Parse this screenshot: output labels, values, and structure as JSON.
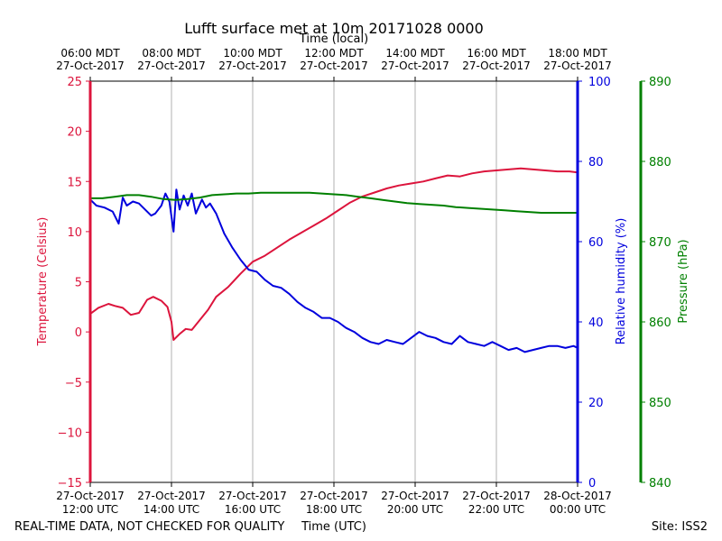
{
  "chart_data": {
    "type": "line",
    "title": "Lufft surface met at 10m 20171028 0000",
    "top_axis_label": "Time (local)",
    "xlabel": "Time (UTC)",
    "footer_left": "REAL-TIME DATA, NOT CHECKED FOR QUALITY",
    "footer_right": "Site: ISS2",
    "x_range_hours_utc": [
      12,
      24
    ],
    "x_ticks_utc": [
      {
        "hour": 12,
        "line1": "27-Oct-2017",
        "line2": "12:00 UTC"
      },
      {
        "hour": 14,
        "line1": "27-Oct-2017",
        "line2": "14:00 UTC"
      },
      {
        "hour": 16,
        "line1": "27-Oct-2017",
        "line2": "16:00 UTC"
      },
      {
        "hour": 18,
        "line1": "27-Oct-2017",
        "line2": "18:00 UTC"
      },
      {
        "hour": 20,
        "line1": "27-Oct-2017",
        "line2": "20:00 UTC"
      },
      {
        "hour": 22,
        "line1": "27-Oct-2017",
        "line2": "22:00 UTC"
      },
      {
        "hour": 24,
        "line1": "28-Oct-2017",
        "line2": "00:00 UTC"
      }
    ],
    "x_ticks_local": [
      {
        "hour": 12,
        "line1": "06:00 MDT",
        "line2": "27-Oct-2017"
      },
      {
        "hour": 14,
        "line1": "08:00 MDT",
        "line2": "27-Oct-2017"
      },
      {
        "hour": 16,
        "line1": "10:00 MDT",
        "line2": "27-Oct-2017"
      },
      {
        "hour": 18,
        "line1": "12:00 MDT",
        "line2": "27-Oct-2017"
      },
      {
        "hour": 20,
        "line1": "14:00 MDT",
        "line2": "27-Oct-2017"
      },
      {
        "hour": 22,
        "line1": "16:00 MDT",
        "line2": "27-Oct-2017"
      },
      {
        "hour": 24,
        "line1": "18:00 MDT",
        "line2": "27-Oct-2017"
      }
    ],
    "grid": "vertical",
    "axes": {
      "temperature": {
        "label": "Temperature (Celsius)",
        "ylim": [
          -15,
          25
        ],
        "ticks": [
          {
            "v": -15,
            "t": "−15"
          },
          {
            "v": -10,
            "t": "−10"
          },
          {
            "v": -5,
            "t": "−5"
          },
          {
            "v": 0,
            "t": "0"
          },
          {
            "v": 5,
            "t": "5"
          },
          {
            "v": 10,
            "t": "10"
          },
          {
            "v": 15,
            "t": "15"
          },
          {
            "v": 20,
            "t": "20"
          },
          {
            "v": 25,
            "t": "25"
          }
        ]
      },
      "humidity": {
        "label": "Relative humidity (%)",
        "ylim": [
          0,
          100
        ],
        "ticks": [
          {
            "v": 0,
            "t": "0"
          },
          {
            "v": 20,
            "t": "20"
          },
          {
            "v": 40,
            "t": "40"
          },
          {
            "v": 60,
            "t": "60"
          },
          {
            "v": 80,
            "t": "80"
          },
          {
            "v": 100,
            "t": "100"
          }
        ]
      },
      "pressure": {
        "label": "Pressure (hPa)",
        "ylim": [
          840,
          890
        ],
        "ticks": [
          {
            "v": 840,
            "t": "840"
          },
          {
            "v": 850,
            "t": "850"
          },
          {
            "v": 860,
            "t": "860"
          },
          {
            "v": 870,
            "t": "870"
          },
          {
            "v": 880,
            "t": "880"
          },
          {
            "v": 890,
            "t": "890"
          }
        ]
      }
    },
    "series": [
      {
        "name": "Temperature",
        "axis": "temperature",
        "color": "#dc143c",
        "x": [
          12.0,
          12.2,
          12.45,
          12.6,
          12.8,
          13.0,
          13.2,
          13.4,
          13.55,
          13.75,
          13.9,
          14.0,
          14.05,
          14.2,
          14.35,
          14.5,
          14.7,
          14.9,
          15.1,
          15.4,
          15.7,
          16.0,
          16.3,
          16.6,
          16.9,
          17.2,
          17.5,
          17.8,
          18.1,
          18.4,
          18.7,
          19.0,
          19.3,
          19.6,
          19.9,
          20.2,
          20.5,
          20.8,
          21.1,
          21.4,
          21.7,
          22.0,
          22.3,
          22.6,
          22.9,
          23.2,
          23.5,
          23.8,
          24.0
        ],
        "y": [
          1.8,
          2.4,
          2.8,
          2.6,
          2.4,
          1.7,
          1.9,
          3.2,
          3.5,
          3.1,
          2.5,
          1.0,
          -0.8,
          -0.2,
          0.3,
          0.2,
          1.2,
          2.2,
          3.5,
          4.5,
          5.8,
          7.0,
          7.6,
          8.4,
          9.2,
          9.9,
          10.6,
          11.3,
          12.1,
          12.9,
          13.5,
          13.9,
          14.3,
          14.6,
          14.8,
          15.0,
          15.3,
          15.6,
          15.5,
          15.8,
          16.0,
          16.1,
          16.2,
          16.3,
          16.2,
          16.1,
          16.0,
          16.0,
          15.9
        ]
      },
      {
        "name": "Relative humidity",
        "axis": "humidity",
        "color": "#0000dd",
        "x": [
          12.0,
          12.15,
          12.35,
          12.55,
          12.7,
          12.8,
          12.9,
          13.05,
          13.2,
          13.35,
          13.5,
          13.6,
          13.75,
          13.85,
          13.95,
          14.05,
          14.12,
          14.2,
          14.3,
          14.4,
          14.5,
          14.6,
          14.75,
          14.85,
          14.95,
          15.1,
          15.3,
          15.5,
          15.7,
          15.9,
          16.1,
          16.3,
          16.5,
          16.7,
          16.9,
          17.1,
          17.3,
          17.5,
          17.7,
          17.9,
          18.1,
          18.3,
          18.5,
          18.7,
          18.9,
          19.1,
          19.3,
          19.5,
          19.7,
          19.9,
          20.1,
          20.3,
          20.5,
          20.7,
          20.9,
          21.1,
          21.3,
          21.5,
          21.7,
          21.9,
          22.1,
          22.3,
          22.5,
          22.7,
          22.9,
          23.1,
          23.3,
          23.5,
          23.7,
          23.9,
          24.0
        ],
        "y": [
          70.5,
          69.0,
          68.5,
          67.5,
          64.5,
          71.0,
          69.0,
          70.0,
          69.5,
          68.0,
          66.5,
          67.0,
          69.0,
          72.0,
          70.0,
          62.5,
          73.0,
          68.0,
          71.5,
          69.0,
          72.0,
          67.0,
          70.5,
          68.5,
          69.5,
          67.0,
          62.0,
          58.5,
          55.5,
          53.0,
          52.5,
          50.5,
          49.0,
          48.5,
          47.0,
          45.0,
          43.5,
          42.5,
          41.0,
          41.0,
          40.0,
          38.5,
          37.5,
          36.0,
          35.0,
          34.5,
          35.5,
          35.0,
          34.5,
          36.0,
          37.5,
          36.5,
          36.0,
          35.0,
          34.5,
          36.5,
          35.0,
          34.5,
          34.0,
          35.0,
          34.0,
          33.0,
          33.5,
          32.5,
          33.0,
          33.5,
          34.0,
          34.0,
          33.5,
          34.0,
          33.5
        ]
      },
      {
        "name": "Pressure",
        "axis": "pressure",
        "color": "#008000",
        "x": [
          12.0,
          12.3,
          12.6,
          12.9,
          13.2,
          13.5,
          13.8,
          14.1,
          14.4,
          14.7,
          15.0,
          15.3,
          15.6,
          15.9,
          16.2,
          16.5,
          16.8,
          17.1,
          17.4,
          17.7,
          18.0,
          18.3,
          18.6,
          18.9,
          19.2,
          19.5,
          19.8,
          20.1,
          20.4,
          20.7,
          21.0,
          21.3,
          21.6,
          21.9,
          22.2,
          22.5,
          22.8,
          23.1,
          23.4,
          23.7,
          24.0
        ],
        "y": [
          875.4,
          875.4,
          875.6,
          875.8,
          875.8,
          875.6,
          875.3,
          875.2,
          875.3,
          875.5,
          875.8,
          875.9,
          876.0,
          876.0,
          876.1,
          876.1,
          876.1,
          876.1,
          876.1,
          876.0,
          875.9,
          875.8,
          875.6,
          875.4,
          875.2,
          875.0,
          874.8,
          874.7,
          874.6,
          874.5,
          874.3,
          874.2,
          874.1,
          874.0,
          873.9,
          873.8,
          873.7,
          873.6,
          873.6,
          873.6,
          873.6
        ]
      }
    ]
  }
}
